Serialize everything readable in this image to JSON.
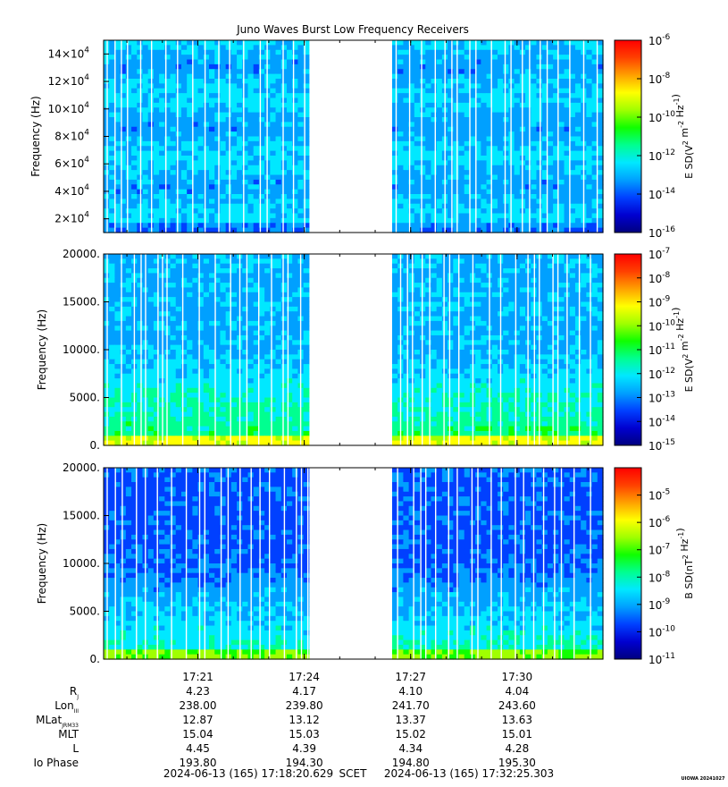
{
  "title": "Juno Waves Burst Low Frequency Receivers",
  "footer": {
    "start": "2024-06-13 (165) 17:18:20.629",
    "scet": "SCET",
    "end": "2024-06-13 (165) 17:32:25.303",
    "credit": "UIOWA 20241027"
  },
  "ephemeris": {
    "rows": [
      {
        "label": "R",
        "sub": "J",
        "values": [
          "4.23",
          "4.17",
          "4.10",
          "4.04"
        ]
      },
      {
        "label": "Lon",
        "sub": "III",
        "values": [
          "238.00",
          "239.80",
          "241.70",
          "243.60"
        ]
      },
      {
        "label": "MLat",
        "sub": "JRM33",
        "values": [
          "12.87",
          "13.12",
          "13.37",
          "13.63"
        ]
      },
      {
        "label": "MLT",
        "sub": "",
        "values": [
          "15.04",
          "15.03",
          "15.02",
          "15.01"
        ]
      },
      {
        "label": "L",
        "sub": "",
        "values": [
          "4.45",
          "4.39",
          "4.34",
          "4.28"
        ]
      },
      {
        "label": "Io Phase",
        "sub": "",
        "values": [
          "193.80",
          "194.30",
          "194.80",
          "195.30"
        ]
      }
    ]
  },
  "colors": {
    "scale": [
      "#000080",
      "#0000d0",
      "#0040ff",
      "#00a0ff",
      "#00e8ff",
      "#00ff90",
      "#10ff00",
      "#a0ff00",
      "#ffff00",
      "#ffa000",
      "#ff4000",
      "#ff0000"
    ],
    "gap": "#ffffff"
  },
  "chart_data": [
    {
      "type": "heatmap",
      "id": "panel1",
      "ylabel": "Frequency (Hz)",
      "ylim": [
        10000,
        150000
      ],
      "yticks": [
        20000,
        40000,
        60000,
        80000,
        100000,
        120000,
        140000
      ],
      "ytick_labels": [
        [
          "2",
          "4"
        ],
        [
          "4",
          "4"
        ],
        [
          "6",
          "4"
        ],
        [
          "8",
          "4"
        ],
        [
          "10",
          "4"
        ],
        [
          "12",
          "4"
        ],
        [
          "14",
          "4"
        ]
      ],
      "xticks": [
        "17:21",
        "17:24",
        "17:27",
        "17:30"
      ],
      "data_gap": [
        "17:24:10",
        "17:26:20"
      ],
      "colorbar": {
        "label": "E SD(V^2 m^-2 Hz^-1)",
        "range_log10": [
          -16,
          -6
        ],
        "ticks": [
          {
            "m": "10",
            "e": "-6"
          },
          {
            "m": "10",
            "e": "-8"
          },
          {
            "m": "10",
            "e": "-10"
          },
          {
            "m": "10",
            "e": "-12"
          },
          {
            "m": "10",
            "e": "-14"
          },
          {
            "m": "10",
            "e": "-16"
          }
        ]
      }
    },
    {
      "type": "heatmap",
      "id": "panel2",
      "ylabel": "Frequency (Hz)",
      "ylim": [
        0,
        20000
      ],
      "yticks": [
        0,
        5000,
        10000,
        15000,
        20000
      ],
      "ytick_labels": [
        "0.",
        "5000.",
        "10000.",
        "15000.",
        "20000."
      ],
      "xticks": [
        "17:21",
        "17:24",
        "17:27",
        "17:30"
      ],
      "data_gap": [
        "17:24:10",
        "17:26:20"
      ],
      "colorbar": {
        "label": "E SD(V^2 m^-2 Hz^-1)",
        "range_log10": [
          -15,
          -7
        ],
        "ticks": [
          {
            "m": "10",
            "e": "-7"
          },
          {
            "m": "10",
            "e": "-8"
          },
          {
            "m": "10",
            "e": "-9"
          },
          {
            "m": "10",
            "e": "-10"
          },
          {
            "m": "10",
            "e": "-11"
          },
          {
            "m": "10",
            "e": "-12"
          },
          {
            "m": "10",
            "e": "-13"
          },
          {
            "m": "10",
            "e": "-14"
          },
          {
            "m": "10",
            "e": "-15"
          }
        ]
      }
    },
    {
      "type": "heatmap",
      "id": "panel3",
      "ylabel": "Frequency (Hz)",
      "ylim": [
        0,
        20000
      ],
      "yticks": [
        0,
        5000,
        10000,
        15000,
        20000
      ],
      "ytick_labels": [
        "0.",
        "5000.",
        "10000.",
        "15000.",
        "20000."
      ],
      "xticks": [
        "17:21",
        "17:24",
        "17:27",
        "17:30"
      ],
      "data_gap": [
        "17:24:10",
        "17:26:20"
      ],
      "colorbar": {
        "label": "B SD(nT^2 Hz^-1)",
        "range_log10": [
          -11,
          -4
        ],
        "ticks": [
          {
            "m": "10",
            "e": "-5"
          },
          {
            "m": "10",
            "e": "-6"
          },
          {
            "m": "10",
            "e": "-7"
          },
          {
            "m": "10",
            "e": "-8"
          },
          {
            "m": "10",
            "e": "-9"
          },
          {
            "m": "10",
            "e": "-10"
          },
          {
            "m": "10",
            "e": "-11"
          }
        ]
      }
    }
  ]
}
